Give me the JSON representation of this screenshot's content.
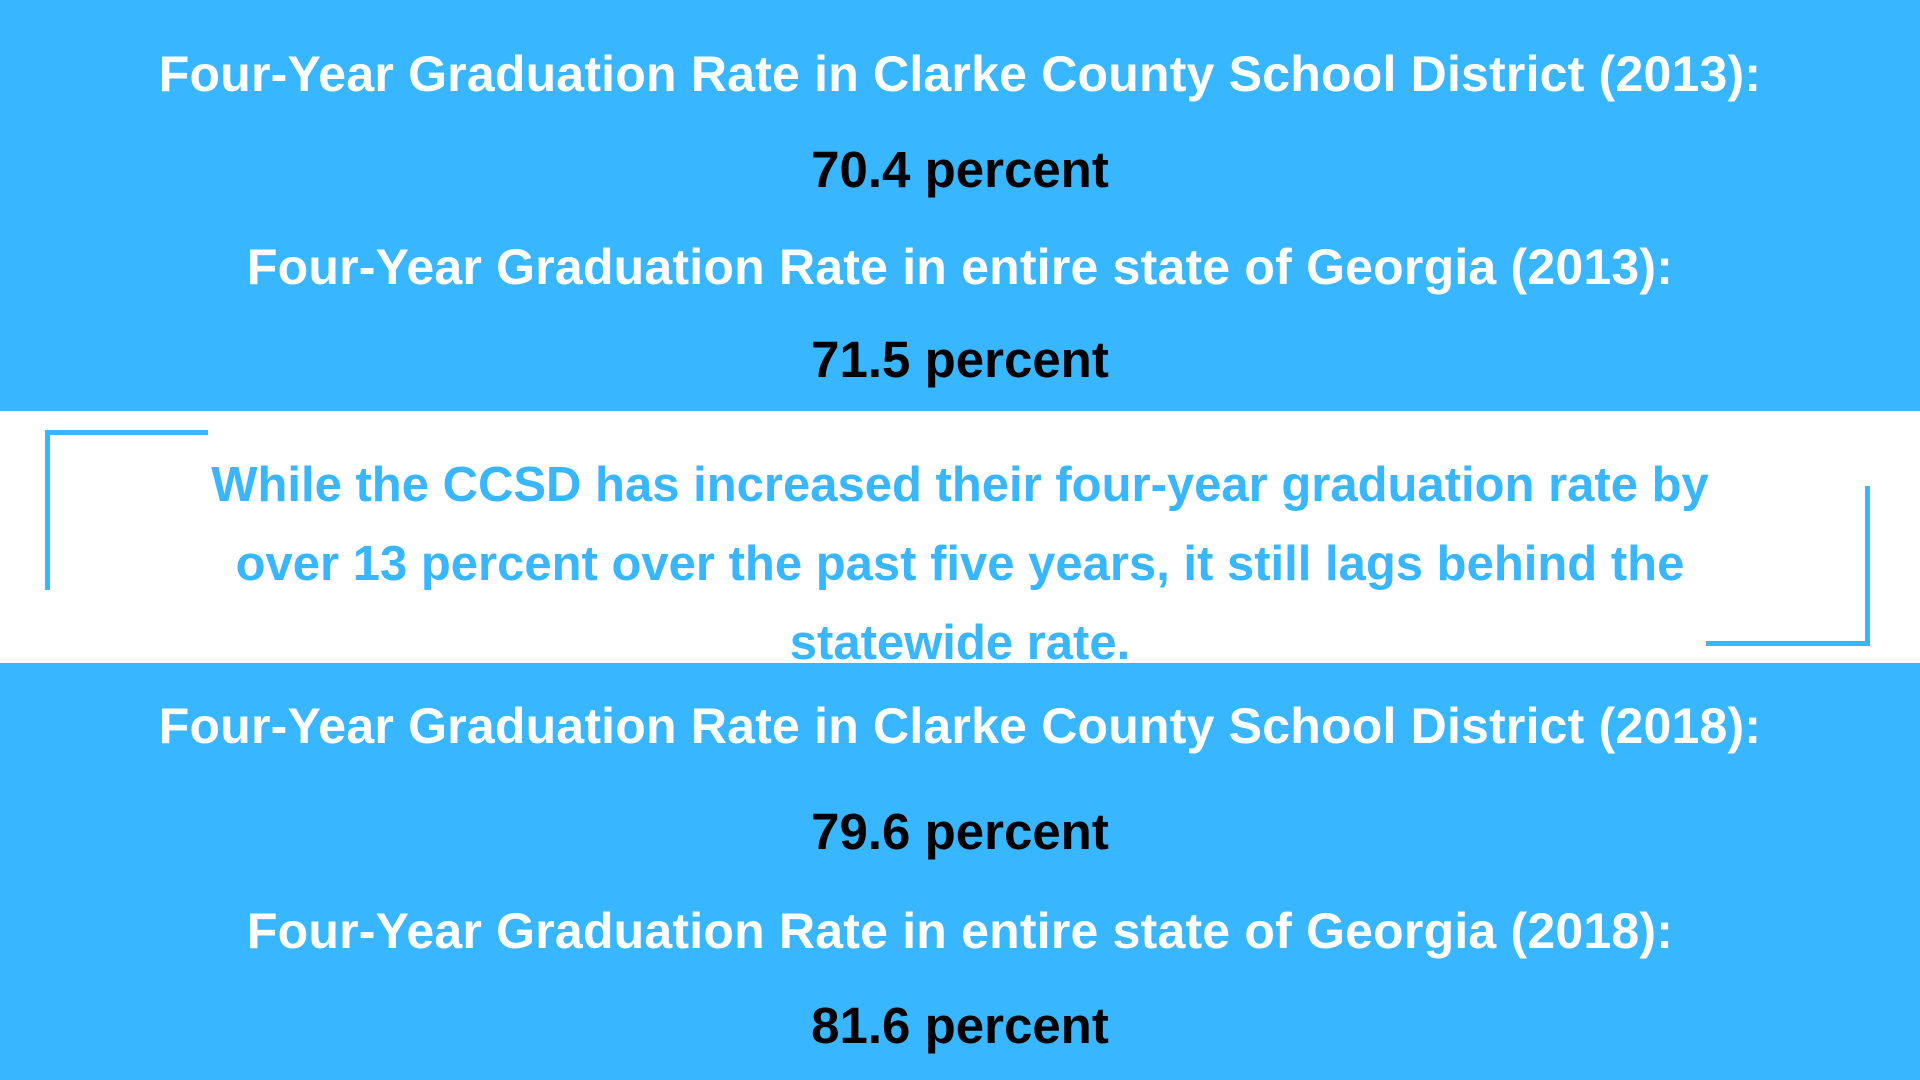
{
  "sections": {
    "top": {
      "ccsd_label": "Four-Year Graduation Rate in Clarke County School District (2013):",
      "ccsd_value": "70.4 percent",
      "state_label": "Four-Year Graduation Rate in entire state of Georgia (2013):",
      "state_value": "71.5 percent"
    },
    "quote": {
      "line1": "While the CCSD has increased their four-year graduation rate by",
      "line2": "over 13 percent over the past five years, it still lags behind the",
      "line3": "statewide rate."
    },
    "bottom": {
      "ccsd_label": "Four-Year Graduation Rate in Clarke County School District (2018):",
      "ccsd_value": "79.6 percent",
      "state_label": "Four-Year Graduation Rate in entire state of Georgia (2018):",
      "state_value": "81.6 percent"
    }
  },
  "colors": {
    "accent_blue": "#38b6ff",
    "white": "#ffffff",
    "black": "#000000"
  }
}
